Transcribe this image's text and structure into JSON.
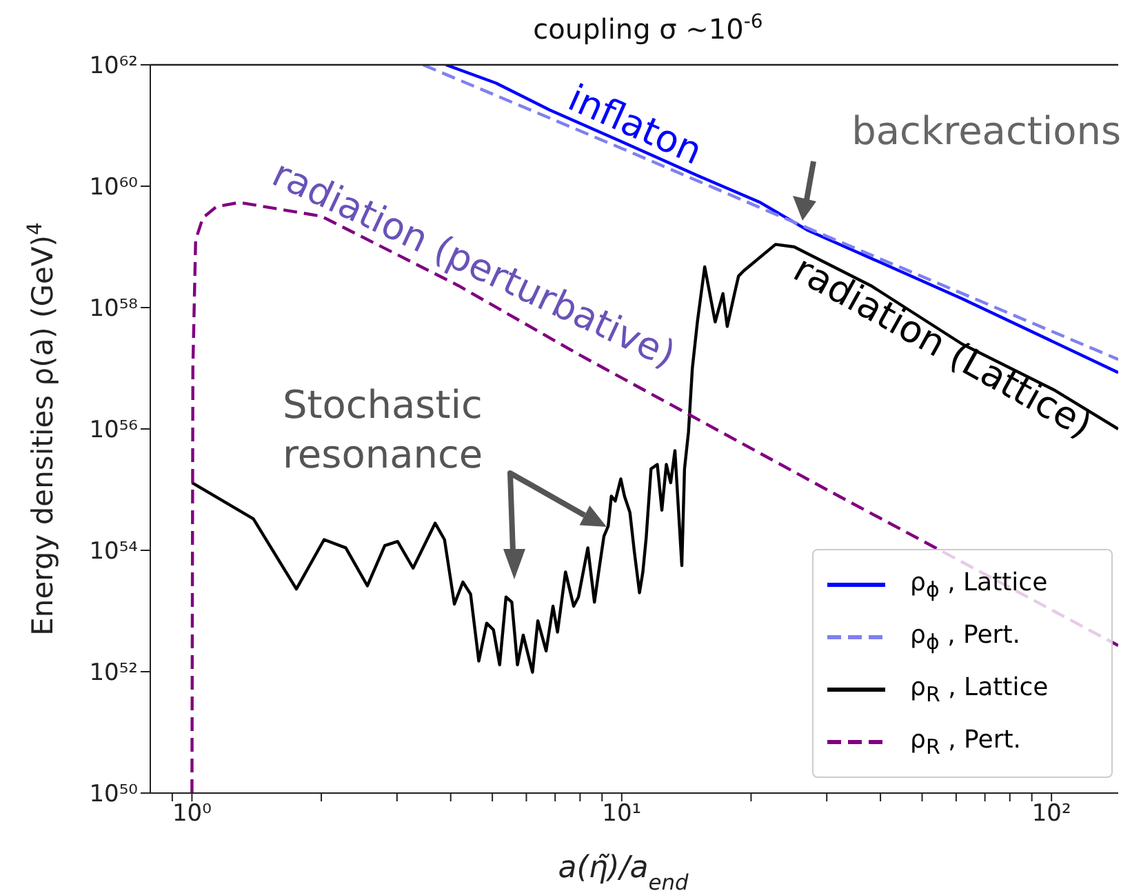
{
  "chart_data": {
    "type": "line",
    "title": "coupling σ ~10$^{-6}$",
    "xlabel": "a(η̃)/a$_{end}$",
    "ylabel": "Energy densities ρ(a) (GeV)$^{4}$",
    "log": "xy",
    "legend": "bottom right",
    "xlim": [
      0.8,
      143
    ],
    "ylim": [
      1e+50,
      1e+62
    ],
    "xticks": [
      {
        "value": 0.9,
        "label": null
      },
      {
        "value": 1,
        "label": "10⁰"
      },
      {
        "value": 2,
        "label": null
      },
      {
        "value": 3,
        "label": null
      },
      {
        "value": 4,
        "label": null
      },
      {
        "value": 5,
        "label": null
      },
      {
        "value": 6,
        "label": null
      },
      {
        "value": 7,
        "label": null
      },
      {
        "value": 8,
        "label": null
      },
      {
        "value": 9,
        "label": null
      },
      {
        "value": 10,
        "label": "10¹"
      },
      {
        "value": 20,
        "label": null
      },
      {
        "value": 30,
        "label": null
      },
      {
        "value": 40,
        "label": null
      },
      {
        "value": 50,
        "label": null
      },
      {
        "value": 60,
        "label": null
      },
      {
        "value": 70,
        "label": null
      },
      {
        "value": 80,
        "label": null
      },
      {
        "value": 90,
        "label": null
      },
      {
        "value": 100,
        "label": "10²"
      }
    ],
    "yticks": [
      {
        "value": 1e+50,
        "label": "10⁵⁰"
      },
      {
        "value": 1e+52,
        "label": "10⁵²"
      },
      {
        "value": 1e+54,
        "label": "10⁵⁴"
      },
      {
        "value": 1e+56,
        "label": "10⁵⁶"
      },
      {
        "value": 1e+58,
        "label": "10⁵⁸"
      },
      {
        "value": 1e+60,
        "label": "10⁶⁰"
      },
      {
        "value": 1e+62,
        "label": "10⁶²"
      }
    ],
    "series": [
      {
        "name": "ρ$_{ϕ}$ , Lattice",
        "color": "#0000ff",
        "line_style": "solid",
        "x": [
          3.9,
          5.1,
          6.8,
          10,
          15,
          21,
          27,
          62,
          143
        ],
        "values": [
          1e+62,
          5e+61,
          1.8e+61,
          5.4e+60,
          1.5e+60,
          5.4e+59,
          1.9e+59,
          1.4e+58,
          8.5e+56
        ]
      },
      {
        "name": "ρ$_{ϕ}$ , Pert.",
        "color": "#8080f0",
        "line_style": "dashed",
        "x": [
          3.45,
          10,
          30,
          143
        ],
        "values": [
          1e+62,
          4.2e+60,
          1.5e+59,
          1.4e+57
        ]
      },
      {
        "name": "ρ$_{R}$ , Lattice",
        "color": "#000000",
        "line_style": "solid",
        "x": [
          1,
          1.39,
          1.75,
          2.03,
          2.28,
          2.56,
          2.81,
          3.01,
          3.27,
          3.68,
          3.87,
          4.08,
          4.27,
          4.45,
          4.65,
          4.85,
          5.03,
          5.2,
          5.38,
          5.55,
          5.72,
          5.9,
          6.2,
          6.38,
          6.67,
          6.92,
          7.09,
          7.4,
          7.73,
          7.93,
          8.34,
          8.64,
          8.85,
          9.09,
          9.3,
          9.46,
          9.66,
          9.95,
          10.15,
          10.45,
          10.7,
          11,
          11.2,
          11.4,
          11.7,
          12.1,
          12.4,
          12.7,
          13,
          13.3,
          13.8,
          14,
          14.3,
          14.6,
          15,
          15.6,
          15.9,
          16.5,
          17.2,
          17.6,
          18.3,
          18.7,
          19.2,
          22.8,
          25.2,
          38,
          62,
          102,
          143
        ],
        "values": [
          1.3e+55,
          3.3e+54,
          2.3e+53,
          1.5e+54,
          1.1e+54,
          2.6e+53,
          1.2e+54,
          1.4e+54,
          5.1e+53,
          2.8e+54,
          1.5e+54,
          1.3e+53,
          3e+53,
          1.9e+53,
          1.5e+52,
          6.3e+52,
          4.9e+52,
          1.3e+52,
          1.7e+53,
          1.4e+53,
          1.3e+52,
          4e+52,
          9.8e+51,
          6.9e+52,
          2.2e+52,
          1.2e+53,
          4.5e+52,
          4.4e+53,
          1.2e+53,
          1.7e+53,
          1.1e+54,
          1.4e+53,
          4.7e+53,
          1.7e+54,
          2.5e+54,
          7.8e+54,
          6.5e+54,
          1.5e+55,
          7.8e+54,
          4.2e+54,
          9.5e+53,
          2e+53,
          4.4e+53,
          1.6e+54,
          2.2e+55,
          2.6e+55,
          4.6e+54,
          2.6e+55,
          1.3e+55,
          4.4e+55,
          5.6e+53,
          2.2e+55,
          8.9e+55,
          1e+57,
          5.8e+57,
          4.7e+58,
          2.3e+58,
          5.8e+57,
          1.7e+58,
          4.9e+57,
          1.7e+58,
          3.3e+58,
          4e+58,
          1.1e+59,
          1e+59,
          2.3e+58,
          2.5e+57,
          4.3e+56,
          1e+56
        ]
      },
      {
        "name": "ρ$_{R}$ , Pert.",
        "color": "#800080",
        "line_style": "dashed",
        "x": [
          1,
          1.005,
          1.02,
          1.06,
          1.14,
          1.29,
          2,
          4.17,
          7.93,
          30,
          143
        ],
        "values": [
          1e+50,
          1e+57,
          1.3e+59,
          3e+59,
          4.6e+59,
          5.4e+59,
          3.2e+59,
          2.3e+58,
          1.7e+57,
          1e+55,
          2.7e+52
        ]
      }
    ],
    "annotations": [
      "inflaton",
      "radiation (perturbative)",
      "radiation (Lattice)",
      {
        "text": "backreactions",
        "x": 27,
        "y": 2.7e+59
      },
      "Stochastic resonance"
    ]
  }
}
